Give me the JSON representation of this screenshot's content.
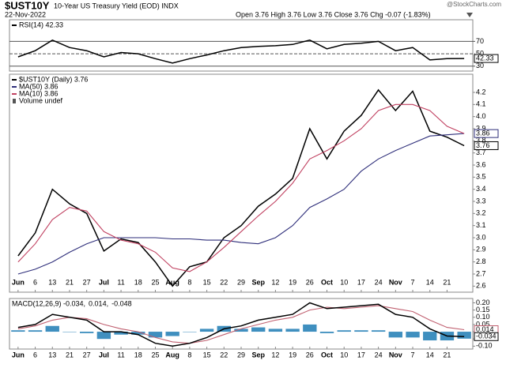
{
  "header": {
    "symbol": "$UST10Y",
    "name": "10-Year US Treasury Yield (EOD) INDX",
    "date": "22-Nov-2022",
    "quote": "Open 3.76 High 3.76 Low 3.76 Close 3.76 Chg -0.07 (-1.83%)",
    "credit": "@StockCharts.com"
  },
  "chart_data": [
    {
      "type": "line",
      "ylim": [
        22,
        105
      ],
      "yticks": [
        30,
        50,
        70
      ],
      "grid": true,
      "series": [
        {
          "name": "RSI(14) 42.33",
          "color": "#000000",
          "end_label": "42.33",
          "values": [
            45,
            55,
            72,
            60,
            55,
            45,
            52,
            50,
            42,
            35,
            42,
            48,
            55,
            60,
            62,
            63,
            65,
            72,
            58,
            65,
            67,
            70,
            55,
            60,
            40,
            42,
            42.33
          ]
        }
      ]
    },
    {
      "type": "line",
      "ylim": [
        2.55,
        4.35
      ],
      "yticks": [
        2.6,
        2.7,
        2.8,
        2.9,
        {
          "value": 3,
          "label": "3.0"
        },
        3.1,
        3.2,
        3.3,
        3.4,
        3.5,
        3.6,
        3.7,
        3.8,
        3.9,
        {
          "value": 4,
          "label": "4.0"
        },
        4.1,
        4.2
      ],
      "categories": [
        "Jun",
        "6",
        "13",
        "21",
        "27",
        "Jul",
        "11",
        "18",
        "25",
        "Aug",
        "8",
        "15",
        "22",
        "29",
        "Sep",
        "12",
        "19",
        "26",
        "Oct",
        "10",
        "17",
        "24",
        "Nov",
        "7",
        "14",
        "21",
        null
      ],
      "note": "Volume undef",
      "series": [
        {
          "name": "$UST10Y (Daily) 3.76",
          "color": "#000000",
          "end_label": "3.76",
          "values": [
            2.85,
            3.04,
            3.4,
            3.28,
            3.2,
            2.89,
            2.99,
            2.96,
            2.8,
            2.6,
            2.76,
            2.8,
            3.0,
            3.1,
            3.26,
            3.36,
            3.49,
            3.9,
            3.65,
            3.88,
            4.01,
            4.22,
            4.05,
            4.21,
            3.88,
            3.83,
            3.76
          ]
        },
        {
          "name": "MA(50) 3.86",
          "color": "#2e2e7a",
          "end_label": "3.86",
          "values": [
            2.7,
            2.74,
            2.8,
            2.88,
            2.95,
            3.0,
            3.0,
            3.0,
            3.0,
            2.99,
            2.99,
            2.98,
            2.98,
            2.96,
            2.95,
            3.0,
            3.1,
            3.25,
            3.32,
            3.4,
            3.55,
            3.65,
            3.72,
            3.78,
            3.84,
            3.85,
            3.86
          ]
        },
        {
          "name": "MA(10) 3.86",
          "color": "#c04060",
          "values": [
            2.8,
            2.95,
            3.15,
            3.25,
            3.22,
            3.05,
            2.98,
            2.95,
            2.88,
            2.75,
            2.72,
            2.8,
            2.92,
            3.05,
            3.18,
            3.3,
            3.45,
            3.65,
            3.72,
            3.8,
            3.9,
            4.05,
            4.1,
            4.1,
            4.05,
            3.92,
            3.86
          ]
        }
      ]
    },
    {
      "type": "line",
      "ylim": [
        -0.12,
        0.23
      ],
      "yticks": [
        {
          "value": -0.1,
          "label": "-0.10"
        },
        {
          "value": -0.05,
          "label": "-0.05"
        },
        {
          "value": 0,
          "label": "0.00"
        },
        {
          "value": 0.05,
          "label": "0.05"
        },
        {
          "value": 0.1,
          "label": "0.10"
        },
        {
          "value": 0.15,
          "label": "0.15"
        },
        {
          "value": 0.2,
          "label": "0.20"
        }
      ],
      "categories": [
        "Jun",
        "6",
        "13",
        "21",
        "27",
        "Jul",
        "11",
        "18",
        "25",
        "Aug",
        "8",
        "15",
        "22",
        "29",
        "Sep",
        "12",
        "19",
        "26",
        "Oct",
        "10",
        "17",
        "24",
        "Nov",
        "7",
        "14",
        "21",
        null
      ],
      "series": [
        {
          "name": "-0.048",
          "color": "#3f8fbf",
          "type": "bar",
          "values": [
            0.01,
            0.01,
            0.04,
            0.0,
            -0.01,
            -0.05,
            -0.02,
            -0.02,
            -0.04,
            -0.03,
            0.0,
            0.02,
            0.04,
            0.02,
            0.03,
            0.02,
            0.02,
            0.05,
            -0.01,
            0.01,
            0.01,
            0.01,
            -0.04,
            -0.04,
            -0.06,
            -0.06,
            -0.048
          ]
        },
        {
          "name": "0.014,",
          "color": "#c06070",
          "end_label": "0.014",
          "values": [
            0.02,
            0.04,
            0.08,
            0.1,
            0.09,
            0.05,
            0.02,
            0.0,
            -0.04,
            -0.07,
            -0.08,
            -0.06,
            -0.02,
            0.02,
            0.05,
            0.08,
            0.1,
            0.15,
            0.17,
            0.16,
            0.17,
            0.18,
            0.16,
            0.14,
            0.08,
            0.03,
            0.014
          ]
        },
        {
          "name": "MACD(12,26,9) -0.034,",
          "color": "#000000",
          "end_label": "-0.034",
          "values": [
            0.03,
            0.05,
            0.12,
            0.1,
            0.08,
            0.0,
            0.0,
            -0.02,
            -0.08,
            -0.1,
            -0.08,
            -0.04,
            0.02,
            0.04,
            0.08,
            0.1,
            0.12,
            0.2,
            0.16,
            0.17,
            0.18,
            0.19,
            0.12,
            0.1,
            0.02,
            -0.03,
            -0.034
          ]
        }
      ]
    }
  ]
}
